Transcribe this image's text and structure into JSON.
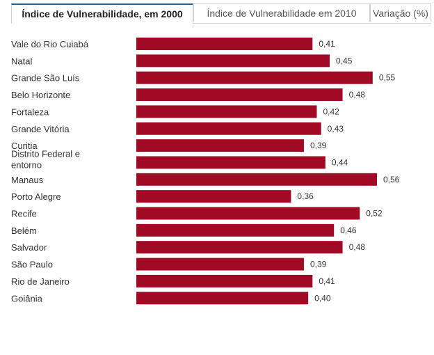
{
  "tabs": [
    {
      "label": "Índice de Vulnerabilidade, em 2000",
      "active": true
    },
    {
      "label": "Índice de Vulnerabilidade em 2010",
      "active": false
    },
    {
      "label": "Variação (%)",
      "active": false
    }
  ],
  "colors": {
    "bar": "#a00a25",
    "label": "#333333"
  },
  "chart_data": {
    "type": "bar",
    "orientation": "horizontal",
    "categories": [
      "Vale do Rio Cuiabá",
      "Natal",
      "Grande São Luís",
      "Belo Horizonte",
      "Fortaleza",
      "Grande Vitória",
      "Curitia",
      "Distrito Federal e entorno",
      "Manaus",
      "Porto Alegre",
      "Recife",
      "Belém",
      "Salvador",
      "São Paulo",
      "Rio de Janeiro",
      "Goiânia"
    ],
    "category_lines": [
      [
        "Vale do Rio Cuiabá"
      ],
      [
        "Natal"
      ],
      [
        "Grande São Luís"
      ],
      [
        "Belo Horizonte"
      ],
      [
        "Fortaleza"
      ],
      [
        "Grande Vitória"
      ],
      [
        "Curitia"
      ],
      [
        "Distrito Federal e",
        "entorno"
      ],
      [
        "Manaus"
      ],
      [
        "Porto Alegre"
      ],
      [
        "Recife"
      ],
      [
        "Belém"
      ],
      [
        "Salvador"
      ],
      [
        "São Paulo"
      ],
      [
        "Rio de Janeiro"
      ],
      [
        "Goiânia"
      ]
    ],
    "values": [
      0.41,
      0.45,
      0.55,
      0.48,
      0.42,
      0.43,
      0.39,
      0.44,
      0.56,
      0.36,
      0.52,
      0.46,
      0.48,
      0.39,
      0.41,
      0.4
    ],
    "value_labels": [
      "0,41",
      "0,45",
      "0,55",
      "0,48",
      "0,42",
      "0,43",
      "0,39",
      "0,44",
      "0,56",
      "0,36",
      "0,52",
      "0,46",
      "0,48",
      "0,39",
      "0,41",
      "0,40"
    ],
    "xlim": [
      0,
      0.56
    ],
    "title": "",
    "xlabel": "",
    "ylabel": "",
    "grid": false,
    "legend": "none"
  }
}
